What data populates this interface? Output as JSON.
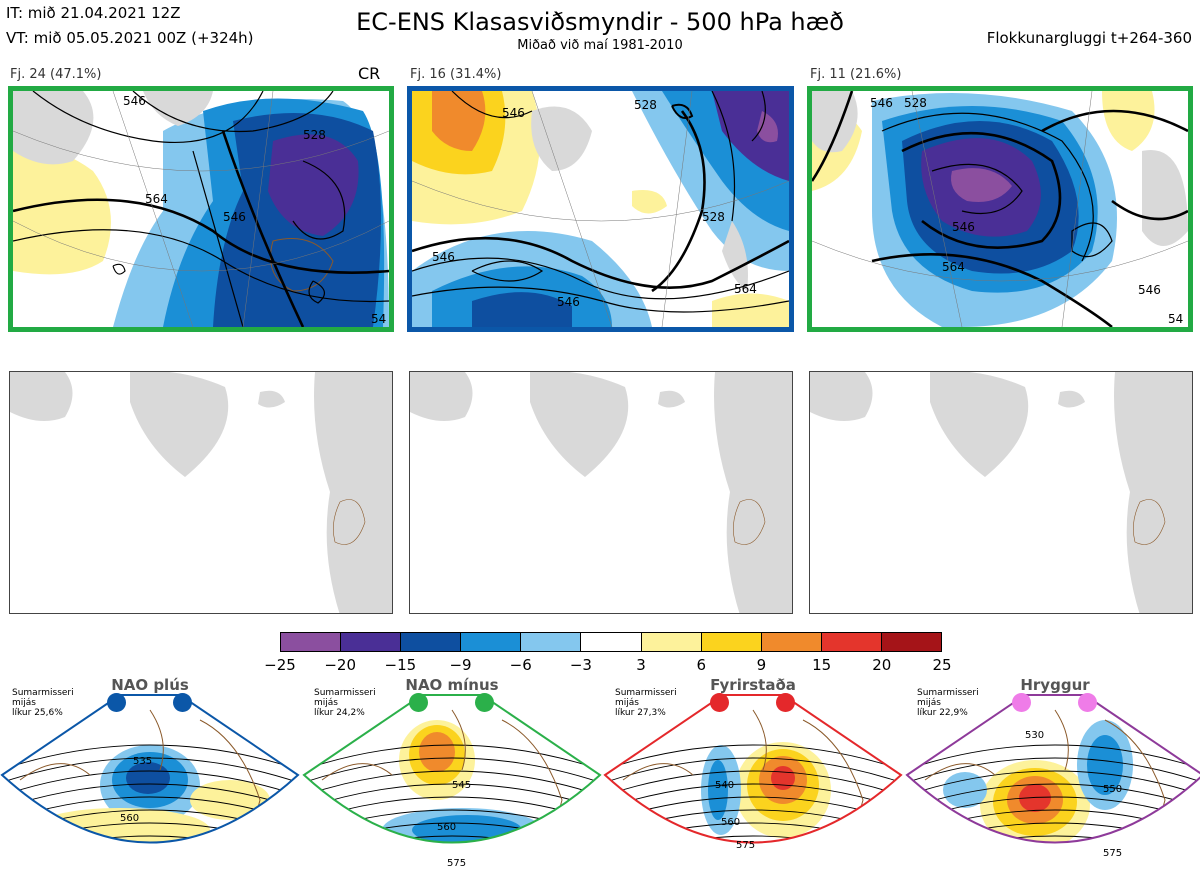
{
  "header": {
    "it": "IT: mið 21.04.2021 12Z",
    "vt": "VT: mið 05.05.2021 00Z  (+324h)",
    "title": "EC-ENS Klasasviðsmyndir - 500 hPa hæð",
    "subtitle": "Miðað við maí 1981-2010",
    "window": "Flokkunargluggi t+264-360"
  },
  "clusters": [
    {
      "label": "Fj. 24 (47.1%)",
      "tag": "CR",
      "border_color": "#22aa44",
      "contour_labels": [
        "546",
        "528",
        "564",
        "546",
        "54"
      ]
    },
    {
      "label": "Fj. 16 (31.4%)",
      "tag": "",
      "border_color": "#0b57a8",
      "contour_labels": [
        "546",
        "528",
        "546",
        "546",
        "564",
        "528"
      ]
    },
    {
      "label": "Fj. 11 (21.6%)",
      "tag": "",
      "border_color": "#22aa44",
      "contour_labels": [
        "546",
        "564",
        "546",
        "528",
        "546",
        "54"
      ]
    }
  ],
  "colorbar": {
    "ticks": [
      "−25",
      "−20",
      "−15",
      "−9",
      "−6",
      "−3",
      "3",
      "6",
      "9",
      "15",
      "20",
      "25"
    ],
    "colors": [
      "#8b4f9f",
      "#4a2f96",
      "#0e4fa0",
      "#1b8fd6",
      "#84c7ee",
      "#ffffff",
      "#fdf29b",
      "#fbd31e",
      "#f08a2c",
      "#e4352c",
      "#a51418"
    ]
  },
  "regimes": [
    {
      "title": "NAO plús",
      "info": [
        "Sumarmisseri",
        "mijás",
        "líkur 25,6%"
      ],
      "color": "#0b57a8",
      "contour_labels": [
        "535",
        "560"
      ]
    },
    {
      "title": "NAO mínus",
      "info": [
        "Sumarmisseri",
        "mijás",
        "líkur 24,2%"
      ],
      "color": "#2bb04a",
      "contour_labels": [
        "545",
        "560",
        "575"
      ]
    },
    {
      "title": "Fyrirstaða",
      "info": [
        "Sumarmisseri",
        "mijás",
        "líkur 27,3%"
      ],
      "color": "#e4282b",
      "contour_labels": [
        "540",
        "560",
        "575"
      ]
    },
    {
      "title": "Hryggur",
      "info": [
        "Sumarmisseri",
        "mijás",
        "líkur 22,9%"
      ],
      "color": "#8e3a9a",
      "dot_color": "#ef7ce8",
      "contour_labels": [
        "530",
        "550",
        "575"
      ]
    }
  ]
}
